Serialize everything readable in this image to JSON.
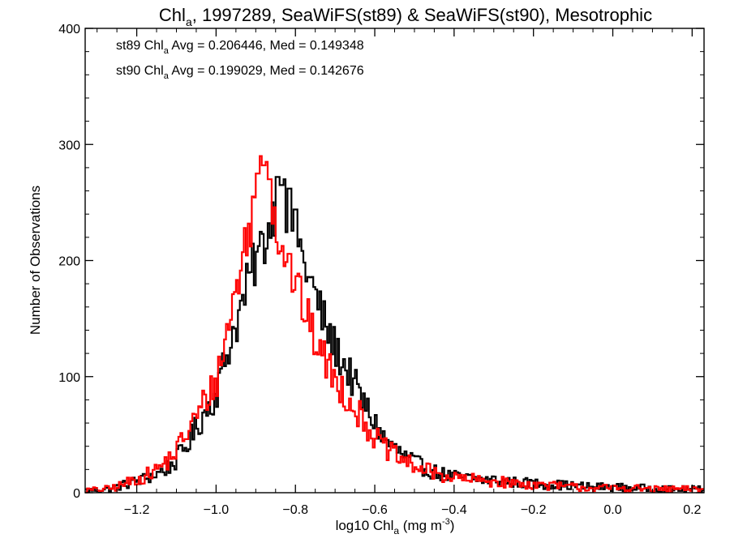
{
  "chart_data": {
    "type": "histogram",
    "title_parts": {
      "a": "Chl",
      "a_sub": "a",
      "b": ", 1997289, SeaWiFS(st89) & SeaWiFS(st90), Mesotrophic"
    },
    "xlabel_parts": {
      "a": "log10 Chl",
      "a_sub": "a",
      "b": " (mg m",
      "b_sup": "-3",
      "c": ")"
    },
    "ylabel": "Number of Observations",
    "xlim": [
      -1.33,
      0.23
    ],
    "ylim": [
      0,
      400
    ],
    "xticks": [
      -1.2,
      -1.0,
      -0.8,
      -0.6,
      -0.4,
      -0.2,
      0.0,
      0.2
    ],
    "xtick_labels": [
      "−1.2",
      "−1.0",
      "−0.8",
      "−0.6",
      "−0.4",
      "−0.2",
      "0.0",
      "0.2"
    ],
    "yticks": [
      0,
      100,
      200,
      300,
      400
    ],
    "ytick_labels": [
      "0",
      "100",
      "200",
      "300",
      "400"
    ],
    "bin_width": 0.005,
    "grid": false,
    "annotations": [
      {
        "pre": "st89 Chl",
        "sub": "a",
        "post": " Avg = 0.206446, Med = 0.149348",
        "color": "#000000"
      },
      {
        "pre": "st90 Chl",
        "sub": "a",
        "post": " Avg = 0.199029, Med = 0.142676",
        "color": "#ff0000"
      }
    ],
    "series": [
      {
        "color": "#000000",
        "profile_x": [
          -1.33,
          -1.28,
          -1.25,
          -1.22,
          -1.18,
          -1.15,
          -1.12,
          -1.1,
          -1.08,
          -1.05,
          -1.03,
          -1.0,
          -0.98,
          -0.96,
          -0.94,
          -0.92,
          -0.9,
          -0.88,
          -0.86,
          -0.85,
          -0.84,
          -0.82,
          -0.8,
          -0.78,
          -0.76,
          -0.74,
          -0.72,
          -0.7,
          -0.68,
          -0.66,
          -0.64,
          -0.62,
          -0.6,
          -0.58,
          -0.55,
          -0.52,
          -0.48,
          -0.45,
          -0.42,
          -0.4,
          -0.38,
          -0.35,
          -0.32,
          -0.3,
          -0.25,
          -0.2,
          -0.15,
          -0.1,
          -0.05,
          0.0,
          0.05,
          0.1,
          0.15,
          0.2,
          0.23
        ],
        "profile_y": [
          2,
          3,
          5,
          8,
          12,
          16,
          22,
          28,
          38,
          55,
          68,
          85,
          110,
          135,
          155,
          180,
          200,
          215,
          235,
          250,
          258,
          245,
          225,
          200,
          180,
          160,
          140,
          125,
          112,
          100,
          85,
          72,
          60,
          48,
          38,
          30,
          22,
          18,
          15,
          14,
          13,
          12,
          11,
          11,
          9,
          8,
          7,
          6,
          5,
          5,
          4,
          4,
          3,
          3,
          3
        ],
        "peaks": [
          [
            -0.845,
            272
          ],
          [
            -0.83,
            270
          ],
          [
            -0.815,
            262
          ],
          [
            -0.8,
            244
          ],
          [
            -0.835,
            265
          ]
        ]
      },
      {
        "color": "#ff0000",
        "profile_x": [
          -1.33,
          -1.28,
          -1.25,
          -1.22,
          -1.18,
          -1.15,
          -1.12,
          -1.1,
          -1.08,
          -1.05,
          -1.03,
          -1.0,
          -0.98,
          -0.96,
          -0.94,
          -0.92,
          -0.9,
          -0.88,
          -0.86,
          -0.85,
          -0.84,
          -0.82,
          -0.8,
          -0.78,
          -0.76,
          -0.74,
          -0.72,
          -0.7,
          -0.68,
          -0.66,
          -0.64,
          -0.62,
          -0.6,
          -0.58,
          -0.55,
          -0.52,
          -0.48,
          -0.45,
          -0.42,
          -0.4,
          -0.38,
          -0.35,
          -0.32,
          -0.3,
          -0.25,
          -0.2,
          -0.15,
          -0.1,
          -0.05,
          0.0,
          0.05,
          0.1,
          0.15,
          0.2,
          0.23
        ],
        "profile_y": [
          2,
          3,
          5,
          9,
          14,
          20,
          28,
          36,
          48,
          65,
          78,
          95,
          125,
          160,
          190,
          225,
          250,
          268,
          250,
          232,
          220,
          200,
          180,
          160,
          140,
          125,
          110,
          98,
          88,
          78,
          68,
          58,
          48,
          40,
          32,
          26,
          20,
          17,
          14,
          13,
          12,
          11,
          10,
          10,
          8,
          7,
          6,
          5,
          4,
          4,
          4,
          3,
          3,
          3,
          3
        ],
        "peaks": [
          [
            -0.885,
            298
          ],
          [
            -0.89,
            290
          ],
          [
            -0.875,
            285
          ],
          [
            -0.865,
            270
          ],
          [
            -0.895,
            275
          ],
          [
            -0.88,
            282
          ]
        ]
      }
    ]
  }
}
